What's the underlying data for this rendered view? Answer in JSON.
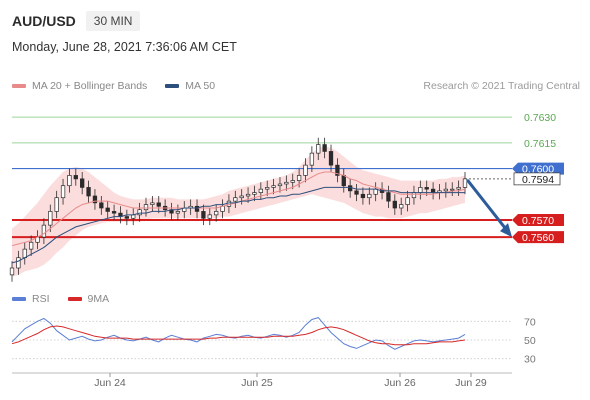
{
  "header": {
    "symbol": "AUD/USD",
    "timeframe": "30 MIN",
    "datetime": "Monday, June 28, 2021 7:36:06 AM CET"
  },
  "legend": {
    "ma20": "MA 20 + Bollinger Bands",
    "ma50": "MA 50",
    "credit": "Research © 2021 Trading Central"
  },
  "rsi_legend": {
    "rsi": "RSI",
    "ma9": "9MA"
  },
  "colors": {
    "bollinger_fill": "#fbd9d9",
    "ma20": "#e88a8a",
    "ma50": "#2c4f7c",
    "candle": "#2b2b2b",
    "support": "#d61e1e",
    "resistance_blue": "#3f6fcf",
    "resistance_green": "#9fd39a",
    "rsi": "#5b7fd4",
    "rsi_ma": "#d62828",
    "forecast_arrow": "#2d5c9a"
  },
  "chart_data": [
    {
      "type": "candlestick",
      "title": "AUD/USD",
      "x_ticks": [
        "Jun 24",
        "Jun 25",
        "Jun 26",
        "Jun 29"
      ],
      "ylim": [
        0.7535,
        0.764
      ],
      "levels": [
        {
          "label": "0.7630",
          "value": 0.763,
          "kind": "resistance-green"
        },
        {
          "label": "0.7615",
          "value": 0.7615,
          "kind": "resistance-green"
        },
        {
          "label": "0.7600",
          "value": 0.76,
          "kind": "resistance-blue"
        },
        {
          "label": "0.7594",
          "value": 0.7594,
          "kind": "last-price"
        },
        {
          "label": "0.7570",
          "value": 0.757,
          "kind": "support"
        },
        {
          "label": "0.7560",
          "value": 0.756,
          "kind": "support"
        }
      ],
      "close_series": [
        0.7542,
        0.7548,
        0.7553,
        0.7557,
        0.756,
        0.7567,
        0.7575,
        0.7583,
        0.759,
        0.7596,
        0.7594,
        0.7589,
        0.7584,
        0.758,
        0.7577,
        0.7575,
        0.7574,
        0.7572,
        0.7571,
        0.7573,
        0.7576,
        0.7579,
        0.758,
        0.7578,
        0.7576,
        0.7574,
        0.7575,
        0.7577,
        0.7578,
        0.7575,
        0.7571,
        0.7573,
        0.7575,
        0.7578,
        0.7581,
        0.7583,
        0.7584,
        0.7585,
        0.7586,
        0.7588,
        0.7589,
        0.759,
        0.7591,
        0.7592,
        0.7593,
        0.7596,
        0.7602,
        0.7609,
        0.7614,
        0.761,
        0.7602,
        0.7596,
        0.759,
        0.7587,
        0.7585,
        0.7583,
        0.7585,
        0.7588,
        0.7586,
        0.7581,
        0.7577,
        0.7579,
        0.7583,
        0.7586,
        0.7589,
        0.7588,
        0.7586,
        0.7587,
        0.7588,
        0.7588,
        0.7589,
        0.7594
      ],
      "ma20": [
        0.7555,
        0.7556,
        0.7557,
        0.7558,
        0.756,
        0.7562,
        0.7565,
        0.7568,
        0.7571,
        0.7574,
        0.7577,
        0.7579,
        0.758,
        0.7581,
        0.7581,
        0.7581,
        0.758,
        0.7579,
        0.7578,
        0.7577,
        0.7577,
        0.7577,
        0.7577,
        0.7577,
        0.7577,
        0.7577,
        0.7577,
        0.7577,
        0.7577,
        0.7577,
        0.7577,
        0.7577,
        0.7577,
        0.7578,
        0.7579,
        0.758,
        0.7581,
        0.7582,
        0.7583,
        0.7584,
        0.7585,
        0.7586,
        0.7587,
        0.7588,
        0.7589,
        0.7591,
        0.7593,
        0.7595,
        0.7597,
        0.7598,
        0.7598,
        0.7597,
        0.7596,
        0.7594,
        0.7593,
        0.7591,
        0.759,
        0.7589,
        0.7588,
        0.7587,
        0.7586,
        0.7585,
        0.7585,
        0.7585,
        0.7585,
        0.7585,
        0.7585,
        0.7586,
        0.7586,
        0.7587,
        0.7587,
        0.7588
      ],
      "bb_upper": [
        0.7565,
        0.7568,
        0.7572,
        0.7576,
        0.758,
        0.7585,
        0.759,
        0.7594,
        0.7598,
        0.76,
        0.7601,
        0.76,
        0.7598,
        0.7595,
        0.7592,
        0.7589,
        0.7586,
        0.7584,
        0.7583,
        0.7582,
        0.7582,
        0.7582,
        0.7583,
        0.7583,
        0.7583,
        0.7583,
        0.7582,
        0.7582,
        0.7582,
        0.7582,
        0.7582,
        0.7583,
        0.7584,
        0.7585,
        0.7587,
        0.7588,
        0.7589,
        0.759,
        0.7591,
        0.7592,
        0.7593,
        0.7594,
        0.7595,
        0.7596,
        0.7598,
        0.7601,
        0.7605,
        0.7609,
        0.7612,
        0.7613,
        0.7612,
        0.761,
        0.7607,
        0.7604,
        0.7601,
        0.7599,
        0.7598,
        0.7597,
        0.7596,
        0.7595,
        0.7594,
        0.7593,
        0.7593,
        0.7593,
        0.7593,
        0.7593,
        0.7593,
        0.7594,
        0.7594,
        0.7595,
        0.7595,
        0.7596
      ],
      "bb_lower": [
        0.7537,
        0.7538,
        0.754,
        0.7541,
        0.7542,
        0.7544,
        0.7547,
        0.7551,
        0.7554,
        0.7558,
        0.7561,
        0.7564,
        0.7566,
        0.7567,
        0.7568,
        0.7569,
        0.7569,
        0.7569,
        0.7569,
        0.7569,
        0.7569,
        0.757,
        0.7571,
        0.7571,
        0.7571,
        0.7571,
        0.7571,
        0.7571,
        0.7571,
        0.7571,
        0.7571,
        0.7571,
        0.7571,
        0.7572,
        0.7572,
        0.7573,
        0.7574,
        0.7575,
        0.7576,
        0.7577,
        0.7578,
        0.7579,
        0.758,
        0.7581,
        0.7582,
        0.7583,
        0.7584,
        0.7585,
        0.7584,
        0.7583,
        0.7582,
        0.7581,
        0.758,
        0.7578,
        0.7576,
        0.7574,
        0.7573,
        0.7572,
        0.7572,
        0.7571,
        0.7571,
        0.7571,
        0.7572,
        0.7573,
        0.7574,
        0.7574,
        0.7575,
        0.7576,
        0.7577,
        0.7578,
        0.7579,
        0.758
      ],
      "ma50": [
        0.7545,
        0.7546,
        0.7548,
        0.755,
        0.7552,
        0.7554,
        0.7557,
        0.756,
        0.7562,
        0.7564,
        0.7566,
        0.7567,
        0.7568,
        0.7569,
        0.757,
        0.7571,
        0.7572,
        0.7572,
        0.7573,
        0.7573,
        0.7574,
        0.7574,
        0.7575,
        0.7575,
        0.7575,
        0.7576,
        0.7576,
        0.7577,
        0.7577,
        0.7577,
        0.7578,
        0.7578,
        0.7579,
        0.7579,
        0.758,
        0.758,
        0.7581,
        0.7581,
        0.7582,
        0.7582,
        0.7583,
        0.7583,
        0.7584,
        0.7584,
        0.7585,
        0.7585,
        0.7586,
        0.7587,
        0.7588,
        0.7589,
        0.7589,
        0.7589,
        0.7589,
        0.7589,
        0.7588,
        0.7588,
        0.7588,
        0.7588,
        0.7587,
        0.7587,
        0.7587,
        0.7586,
        0.7586,
        0.7586,
        0.7586,
        0.7586,
        0.7586,
        0.7586,
        0.7586,
        0.7586,
        0.7586,
        0.7586
      ],
      "forecast_target": 0.756
    },
    {
      "type": "line",
      "title": "RSI",
      "y_ticks": [
        "70",
        "50",
        "30"
      ],
      "ylim": [
        20,
        80
      ],
      "series": [
        {
          "name": "RSI",
          "values": [
            48,
            55,
            62,
            66,
            70,
            73,
            68,
            60,
            55,
            50,
            52,
            54,
            51,
            49,
            50,
            53,
            55,
            52,
            50,
            49,
            51,
            53,
            50,
            48,
            52,
            55,
            53,
            51,
            50,
            48,
            52,
            54,
            56,
            55,
            53,
            52,
            54,
            55,
            53,
            52,
            54,
            56,
            55,
            53,
            55,
            58,
            66,
            72,
            74,
            66,
            58,
            52,
            46,
            43,
            41,
            44,
            47,
            50,
            49,
            44,
            40,
            43,
            46,
            49,
            50,
            49,
            48,
            49,
            50,
            51,
            52,
            56
          ]
        },
        {
          "name": "9MA",
          "values": [
            46,
            48,
            51,
            54,
            57,
            61,
            64,
            65,
            64,
            62,
            60,
            58,
            56,
            54,
            53,
            52,
            52,
            52,
            52,
            51,
            51,
            51,
            51,
            51,
            51,
            51,
            51,
            51,
            51,
            51,
            51,
            52,
            52,
            53,
            53,
            53,
            53,
            53,
            53,
            53,
            53,
            54,
            54,
            54,
            54,
            55,
            56,
            58,
            61,
            63,
            64,
            63,
            61,
            58,
            55,
            52,
            49,
            47,
            46,
            46,
            45,
            45,
            45,
            46,
            46,
            46,
            47,
            48,
            48,
            48,
            49,
            50
          ]
        }
      ]
    }
  ]
}
